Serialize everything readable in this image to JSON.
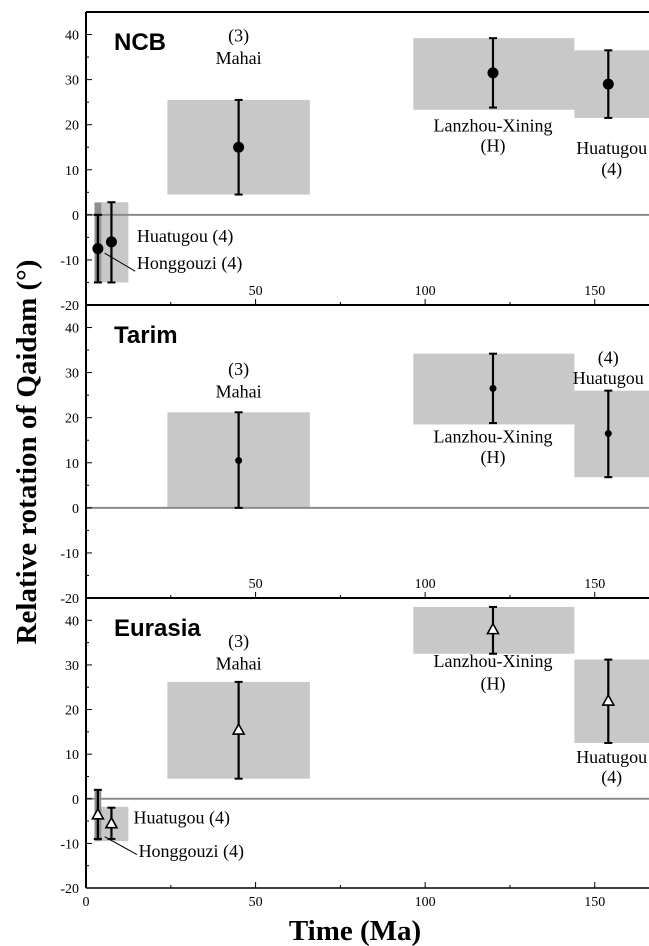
{
  "y_axis_label": "Relative rotation of Qaidam (°)",
  "x_axis_label": "Time (Ma)",
  "colors": {
    "box": "#c8c8c8",
    "box_dark": "#8f8f8f",
    "zero_line": "#8c8c8c",
    "ink": "#000000"
  },
  "chart_data": [
    {
      "type": "scatter",
      "title": "NCB",
      "xlim": [
        0,
        166
      ],
      "ylim": [
        -20,
        45
      ],
      "x_ticks": [
        0,
        50,
        100,
        150
      ],
      "x_tick_labels": [
        "50",
        "100",
        "150"
      ],
      "y_ticks": [
        -20,
        -10,
        0,
        10,
        20,
        30,
        40
      ],
      "y_tick_labels": [
        "-20",
        "-10",
        "0",
        "10",
        "20",
        "30",
        "40"
      ],
      "marker": "filled-circle",
      "series": [
        {
          "points": [
            {
              "x": 3.5,
              "y": -7.5,
              "ylo": -15,
              "yhi": 0
            },
            {
              "x": 7.5,
              "y": -6,
              "ylo": -15,
              "yhi": 2.8
            },
            {
              "x": 45,
              "y": 15,
              "ylo": 4.5,
              "yhi": 25.5
            },
            {
              "x": 120,
              "y": 31.5,
              "ylo": 23.8,
              "yhi": 39.2
            },
            {
              "x": 154,
              "y": 29,
              "ylo": 21.5,
              "yhi": 36.5
            }
          ]
        }
      ],
      "boxes": [
        {
          "x0": 2.5,
          "x1": 4.5,
          "y0": -15,
          "y1": 2.7,
          "dark": true
        },
        {
          "x0": 2.5,
          "x1": 12.5,
          "y0": -15,
          "y1": 2.8
        },
        {
          "x0": 24,
          "x1": 66,
          "y0": 4.5,
          "y1": 25.5
        },
        {
          "x0": 96.5,
          "x1": 144,
          "y0": 23.3,
          "y1": 39.2
        },
        {
          "x0": 144,
          "x1": 166,
          "y0": 21.5,
          "y1": 36.5
        }
      ],
      "annotations": [
        {
          "text": "(3)",
          "x": 45,
          "y": 38.5,
          "anchor": "middle"
        },
        {
          "text": "Mahai",
          "x": 45,
          "y": 33.5,
          "anchor": "middle"
        },
        {
          "text": "Lanzhou-Xining",
          "x": 120,
          "y": 18.5,
          "anchor": "middle"
        },
        {
          "text": "(H)",
          "x": 120,
          "y": 14,
          "anchor": "middle"
        },
        {
          "text": "Huatugou",
          "x": 155,
          "y": 13.5,
          "anchor": "middle"
        },
        {
          "text": "(4)",
          "x": 155,
          "y": 8.8,
          "anchor": "middle"
        },
        {
          "text": "Huatugou (4)",
          "x": 15,
          "y": -6,
          "anchor": "start"
        },
        {
          "text": "Honggouzi (4)",
          "x": 15,
          "y": -12,
          "anchor": "start"
        }
      ],
      "leaders": [
        {
          "x0": 5.5,
          "y0": -8.5,
          "x1": 14.5,
          "y1": -12.5
        }
      ]
    },
    {
      "type": "scatter",
      "title": "Tarim",
      "xlim": [
        0,
        166
      ],
      "ylim": [
        -20,
        45
      ],
      "x_ticks": [
        0,
        50,
        100,
        150
      ],
      "x_tick_labels": [
        "50",
        "100",
        "150"
      ],
      "y_ticks": [
        -20,
        -10,
        0,
        10,
        20,
        30,
        40
      ],
      "y_tick_labels": [
        "-20",
        "-10",
        "0",
        "10",
        "20",
        "30",
        "40"
      ],
      "marker": "small-filled-circle",
      "series": [
        {
          "points": [
            {
              "x": 45,
              "y": 10.5,
              "ylo": 0,
              "yhi": 21.2
            },
            {
              "x": 120,
              "y": 26.5,
              "ylo": 18.8,
              "yhi": 34.2
            },
            {
              "x": 154,
              "y": 16.5,
              "ylo": 6.8,
              "yhi": 26
            }
          ]
        }
      ],
      "boxes": [
        {
          "x0": 24,
          "x1": 66,
          "y0": 0,
          "y1": 21.2
        },
        {
          "x0": 96.5,
          "x1": 144,
          "y0": 18.5,
          "y1": 34.2
        },
        {
          "x0": 144,
          "x1": 166,
          "y0": 6.8,
          "y1": 26
        }
      ],
      "annotations": [
        {
          "text": "(3)",
          "x": 45,
          "y": 29.5,
          "anchor": "middle"
        },
        {
          "text": "Mahai",
          "x": 45,
          "y": 24.5,
          "anchor": "middle"
        },
        {
          "text": "Lanzhou-Xining",
          "x": 120,
          "y": 14.5,
          "anchor": "middle"
        },
        {
          "text": "(H)",
          "x": 120,
          "y": 10,
          "anchor": "middle"
        },
        {
          "text": "(4)",
          "x": 154,
          "y": 32,
          "anchor": "middle"
        },
        {
          "text": "Huatugou",
          "x": 154,
          "y": 27.5,
          "anchor": "middle"
        }
      ],
      "leaders": []
    },
    {
      "type": "scatter",
      "title": "Eurasia",
      "xlim": [
        0,
        166
      ],
      "ylim": [
        -20,
        45
      ],
      "x_ticks": [
        0,
        50,
        100,
        150
      ],
      "x_tick_labels": [
        "0",
        "50",
        "100",
        "150"
      ],
      "y_ticks": [
        -20,
        -10,
        0,
        10,
        20,
        30,
        40
      ],
      "y_tick_labels": [
        "-20",
        "-10",
        "0",
        "10",
        "20",
        "30",
        "40"
      ],
      "marker": "open-triangle",
      "series": [
        {
          "points": [
            {
              "x": 3.5,
              "y": -3.5,
              "ylo": -9,
              "yhi": 2
            },
            {
              "x": 7.5,
              "y": -5.5,
              "ylo": -9,
              "yhi": -2
            },
            {
              "x": 45,
              "y": 15.5,
              "ylo": 4.5,
              "yhi": 26.2
            },
            {
              "x": 120,
              "y": 38,
              "ylo": 32.5,
              "yhi": 43
            },
            {
              "x": 154,
              "y": 22,
              "ylo": 12.5,
              "yhi": 31.2
            }
          ]
        }
      ],
      "boxes": [
        {
          "x0": 2.5,
          "x1": 4.5,
          "y0": -9.5,
          "y1": 2,
          "dark": true
        },
        {
          "x0": 2.5,
          "x1": 12.5,
          "y0": -9.5,
          "y1": -1.8
        },
        {
          "x0": 24,
          "x1": 66,
          "y0": 4.5,
          "y1": 26.2
        },
        {
          "x0": 96.5,
          "x1": 144,
          "y0": 32.5,
          "y1": 43
        },
        {
          "x0": 144,
          "x1": 166,
          "y0": 12.5,
          "y1": 31.2
        }
      ],
      "annotations": [
        {
          "text": "(3)",
          "x": 45,
          "y": 34,
          "anchor": "middle"
        },
        {
          "text": "Mahai",
          "x": 45,
          "y": 29,
          "anchor": "middle"
        },
        {
          "text": "Lanzhou-Xining",
          "x": 120,
          "y": 29.5,
          "anchor": "middle"
        },
        {
          "text": "(H)",
          "x": 120,
          "y": 24.5,
          "anchor": "middle"
        },
        {
          "text": "Huatugou",
          "x": 155,
          "y": 8,
          "anchor": "middle"
        },
        {
          "text": "(4)",
          "x": 155,
          "y": 3.5,
          "anchor": "middle"
        },
        {
          "text": "Huatugou (4)",
          "x": 14,
          "y": -5.5,
          "anchor": "start"
        },
        {
          "text": "Honggouzi (4)",
          "x": 15.5,
          "y": -13,
          "anchor": "start"
        }
      ],
      "leaders": [
        {
          "x0": 5.5,
          "y0": -8.5,
          "x1": 15,
          "y1": -12.5
        }
      ]
    }
  ]
}
